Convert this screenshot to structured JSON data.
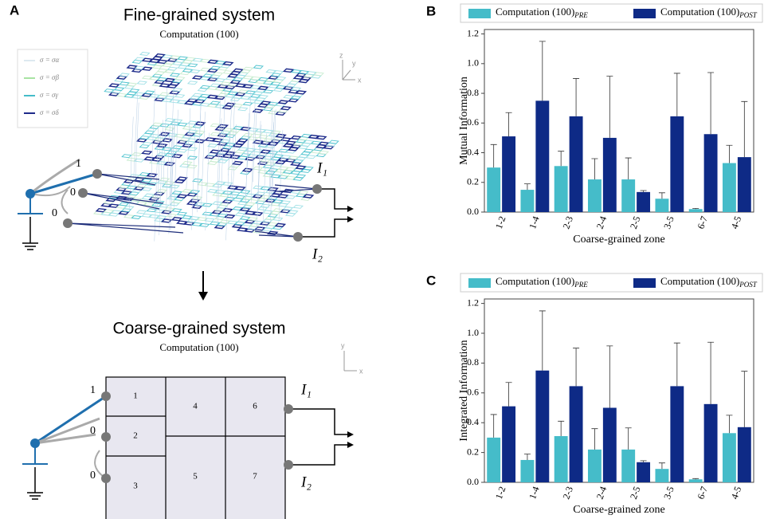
{
  "diagram": {
    "panel": "A",
    "fine": {
      "title": "Fine-grained system",
      "subtitle": "Computation (100)",
      "legend": [
        "σ = σα",
        "σ = σβ",
        "σ = σγ",
        "σ = σδ"
      ],
      "inputs": [
        "1",
        "0",
        "0"
      ],
      "outputs": [
        "I₁",
        "I₂"
      ],
      "axes": [
        "z",
        "y",
        "x"
      ]
    },
    "coarse": {
      "title": "Coarse-grained system",
      "subtitle": "Computation (100)",
      "zones": [
        "1",
        "2",
        "3",
        "4",
        "5",
        "6",
        "7"
      ],
      "inputs": [
        "1",
        "0",
        "0"
      ],
      "outputs": [
        "I₁",
        "I₂"
      ],
      "axes": [
        "y",
        "x"
      ]
    }
  },
  "chart_data": [
    {
      "type": "bar",
      "panel": "B",
      "y_label": "Mutual Information",
      "x_label": "Coarse-grained zone",
      "categories": [
        "1-2",
        "1-4",
        "2-3",
        "2-4",
        "2-5",
        "3-5",
        "6-7",
        "4-5"
      ],
      "series": [
        {
          "name": "Computation (100)PRE",
          "color": "#45bcc9",
          "values": [
            0.3,
            0.15,
            0.31,
            0.22,
            0.22,
            0.09,
            0.02,
            0.33
          ],
          "errors": [
            0.155,
            0.04,
            0.1,
            0.14,
            0.145,
            0.04,
            0.005,
            0.12
          ]
        },
        {
          "name": "Computation (100)POST",
          "color": "#0e2a86",
          "values": [
            0.51,
            0.75,
            0.645,
            0.5,
            0.135,
            0.645,
            0.525,
            0.37
          ],
          "errors": [
            0.16,
            0.4,
            0.255,
            0.415,
            0.01,
            0.29,
            0.415,
            0.375
          ]
        }
      ],
      "ylim": [
        0,
        1.23
      ],
      "yticks": [
        {
          "value": 0,
          "label": "0.0"
        },
        0.2,
        0.4,
        0.6,
        0.8,
        {
          "value": 1,
          "label": "1.0"
        },
        1.2
      ]
    },
    {
      "type": "bar",
      "panel": "C",
      "y_label": "Integrated Information",
      "x_label": "Coarse-grained zone",
      "categories": [
        "1-2",
        "1-4",
        "2-3",
        "2-4",
        "2-5",
        "3-5",
        "6-7",
        "4-5"
      ],
      "series": [
        {
          "name": "Computation (100)PRE",
          "color": "#45bcc9",
          "values": [
            0.3,
            0.15,
            0.31,
            0.22,
            0.22,
            0.09,
            0.02,
            0.33
          ],
          "errors": [
            0.155,
            0.04,
            0.1,
            0.14,
            0.145,
            0.04,
            0.005,
            0.12
          ]
        },
        {
          "name": "Computation (100)POST",
          "color": "#0e2a86",
          "values": [
            0.51,
            0.75,
            0.645,
            0.5,
            0.135,
            0.645,
            0.525,
            0.37
          ],
          "errors": [
            0.16,
            0.4,
            0.255,
            0.415,
            0.01,
            0.29,
            0.415,
            0.375
          ]
        }
      ],
      "ylim": [
        0,
        1.23
      ],
      "yticks": [
        {
          "value": 0,
          "label": "0.0"
        },
        0.2,
        0.4,
        0.6,
        0.8,
        {
          "value": 1,
          "label": "1.0"
        },
        1.2
      ]
    }
  ]
}
